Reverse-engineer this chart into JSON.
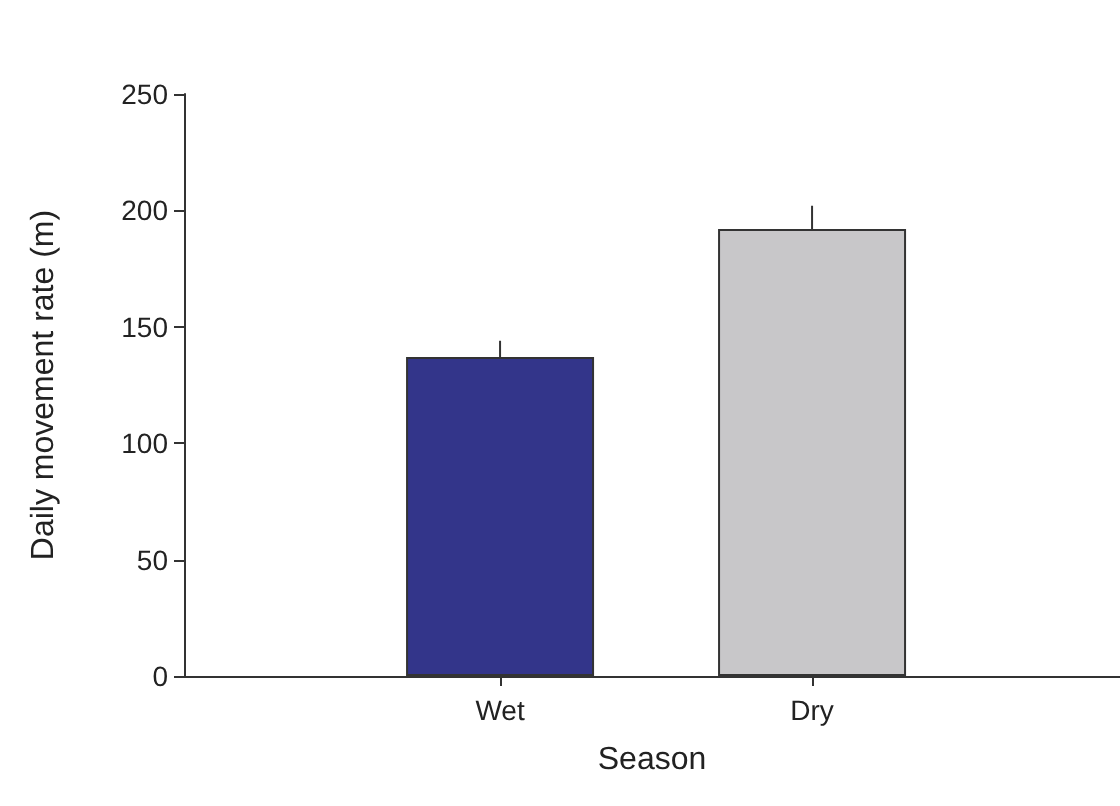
{
  "chart_data": {
    "type": "bar",
    "xlabel": "Season",
    "ylabel": "Daily movement rate (m)",
    "categories": [
      "Wet",
      "Dry"
    ],
    "values": [
      137,
      192
    ],
    "colors": [
      "#33358a",
      "#c8c7c9"
    ],
    "errors": [
      [
        137,
        144
      ],
      [
        192,
        202
      ]
    ],
    "ylim": [
      0,
      250
    ],
    "yticks": [
      0,
      50,
      100,
      150,
      200,
      250
    ],
    "grid": false
  }
}
